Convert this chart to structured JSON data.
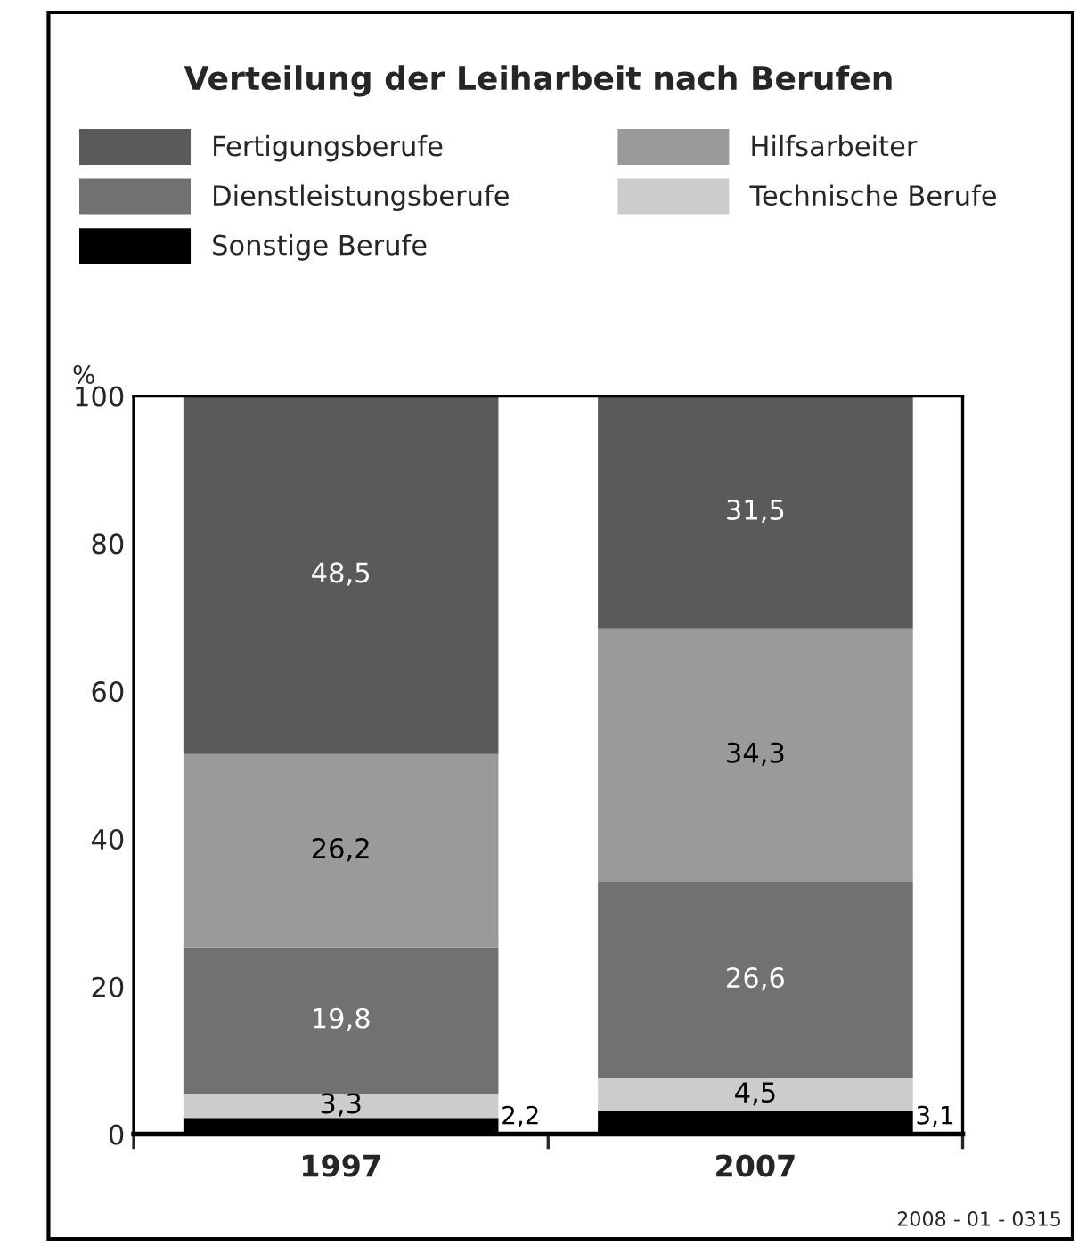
{
  "chart_data": {
    "type": "bar",
    "title": "Verteilung der Leiharbeit nach Berufen",
    "ylabel": "%",
    "categories": [
      "1997",
      "2007"
    ],
    "stacked": true,
    "series": [
      {
        "name": "Sonstige Berufe",
        "color": "#000000",
        "values": [
          2.2,
          3.1
        ],
        "value_labels": [
          "2,2",
          "3,1"
        ]
      },
      {
        "name": "Technische Berufe",
        "color": "#cccccc",
        "values": [
          3.3,
          4.5
        ],
        "value_labels": [
          "3,3",
          "4,5"
        ]
      },
      {
        "name": "Dienstleistungsberufe",
        "color": "#717171",
        "values": [
          19.8,
          26.6
        ],
        "value_labels": [
          "19,8",
          "26,6"
        ]
      },
      {
        "name": "Hilfsarbeiter",
        "color": "#9a9a9a",
        "values": [
          26.2,
          34.3
        ],
        "value_labels": [
          "26,2",
          "34,3"
        ]
      },
      {
        "name": "Fertigungsberufe",
        "color": "#5a5a5a",
        "values": [
          48.5,
          31.5
        ],
        "value_labels": [
          "48,5",
          "31,5"
        ]
      }
    ],
    "ylim": [
      0,
      100
    ],
    "yticks": [
      0,
      20,
      40,
      60,
      80,
      100
    ],
    "grid": false,
    "legend": "top",
    "annotations": [
      "2008 - 01 - 0315"
    ]
  }
}
